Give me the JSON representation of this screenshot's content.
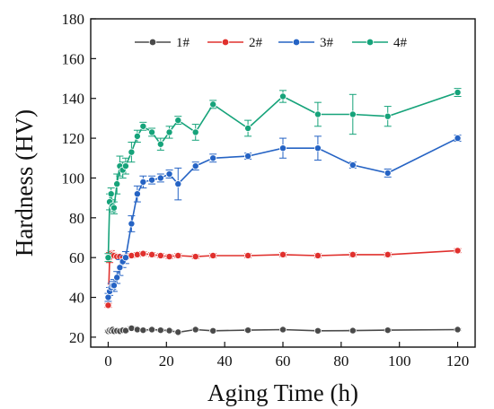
{
  "chart_data": {
    "type": "line",
    "xlabel": "Aging Time (h)",
    "ylabel": "Hardness (HV)",
    "xlim": [
      -6,
      126
    ],
    "ylim": [
      15,
      180
    ],
    "xticks": [
      0,
      20,
      40,
      60,
      80,
      100,
      120
    ],
    "yticks": [
      20,
      40,
      60,
      80,
      100,
      120,
      140,
      160,
      180
    ],
    "grid": false,
    "legend_position": "top",
    "series": [
      {
        "name": "1#",
        "color": "#4a4a4a",
        "x": [
          0,
          0.5,
          1,
          1.5,
          2,
          3,
          4,
          5,
          6,
          8,
          10,
          12,
          15,
          18,
          21,
          24,
          30,
          36,
          48,
          60,
          72,
          84,
          96,
          120
        ],
        "y": [
          23,
          23.5,
          23.2,
          23.8,
          23,
          23.2,
          23,
          23.5,
          23.3,
          24.5,
          23.8,
          23.5,
          23.8,
          23.5,
          23.3,
          22.5,
          23.8,
          23.2,
          23.5,
          23.8,
          23.2,
          23.3,
          23.5,
          23.8
        ],
        "err": [
          0.5,
          0.5,
          0.5,
          0.5,
          0.5,
          0.5,
          0.5,
          0.5,
          0.5,
          0.8,
          0.5,
          0.5,
          0.5,
          0.5,
          0.5,
          0.5,
          0.5,
          0.5,
          0.5,
          0.5,
          0.5,
          0.5,
          0.5,
          0.5
        ]
      },
      {
        "name": "2#",
        "color": "#e0302d",
        "x": [
          0,
          0.5,
          1,
          1.5,
          2,
          3,
          4,
          5,
          6,
          8,
          10,
          12,
          15,
          18,
          21,
          24,
          30,
          36,
          48,
          60,
          72,
          84,
          96,
          120
        ],
        "y": [
          36,
          60,
          62,
          61.5,
          61,
          60.5,
          60.5,
          60,
          60.5,
          61,
          61.5,
          62,
          61.5,
          61,
          60.5,
          61,
          60.5,
          61,
          61,
          61.5,
          61,
          61.5,
          61.5,
          63.5
        ],
        "err": [
          1,
          2.5,
          1.5,
          1,
          1,
          1,
          1,
          1,
          1,
          1,
          1,
          1,
          1,
          1,
          1,
          1,
          1,
          1,
          1,
          1,
          1,
          1,
          1,
          1
        ]
      },
      {
        "name": "3#",
        "color": "#2563c4",
        "x": [
          0,
          0.5,
          1,
          1.5,
          2,
          3,
          4,
          5,
          6,
          8,
          10,
          12,
          15,
          18,
          21,
          24,
          30,
          36,
          48,
          60,
          72,
          84,
          96,
          120
        ],
        "y": [
          40,
          43,
          45,
          46,
          46,
          50,
          55,
          58,
          60,
          77,
          92,
          98,
          99,
          100,
          102,
          97,
          106,
          110,
          111,
          115,
          115,
          106.5,
          102.5,
          120
        ],
        "err": [
          2,
          2,
          2,
          2,
          3,
          3,
          4,
          3,
          3,
          4,
          4,
          3,
          2,
          2,
          2,
          8,
          2,
          2,
          1.5,
          5,
          6,
          1.5,
          2,
          1.5
        ]
      },
      {
        "name": "4#",
        "color": "#16a37a",
        "x": [
          0,
          0.5,
          1,
          1.5,
          2,
          3,
          4,
          5,
          6,
          8,
          10,
          12,
          15,
          18,
          21,
          24,
          30,
          36,
          48,
          60,
          72,
          84,
          96,
          120
        ],
        "y": [
          60,
          88,
          92,
          86,
          85,
          97,
          106,
          104,
          106,
          113,
          121,
          126,
          123,
          117,
          123,
          129,
          123,
          137,
          125,
          141,
          132,
          132,
          131,
          143
        ],
        "err": [
          2,
          4,
          3,
          3,
          3,
          5,
          5,
          4,
          4,
          5,
          3,
          2,
          2,
          3,
          3,
          2,
          4,
          2,
          4,
          3,
          6,
          10,
          5,
          2
        ]
      }
    ]
  }
}
